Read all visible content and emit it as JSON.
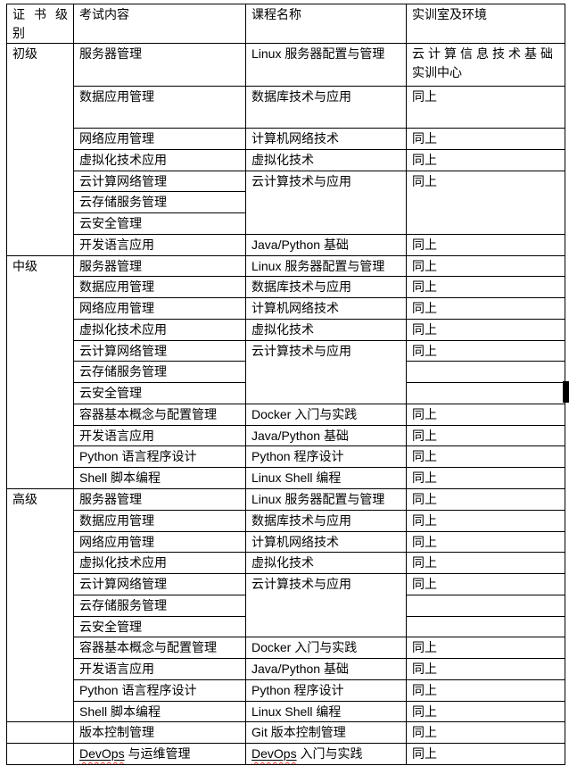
{
  "colors": {
    "background": "#ffffff",
    "border": "#000000",
    "text": "#000000",
    "squiggle": "#e03020",
    "edge_mark": "#000000"
  },
  "table": {
    "columns": [
      "证 书 级 别",
      "考试内容",
      "课程名称",
      "实训室及环境"
    ],
    "rows": [
      {
        "cls": "r-tall1",
        "cells": [
          {
            "t": "初级",
            "rs": 8,
            "name": "level-cell"
          },
          {
            "t": "服务器管理"
          },
          {
            "t": "Linux 服务器配置与管理"
          },
          {
            "t": "云计算信息技术基础实训中心",
            "cls": "env-wrap"
          }
        ]
      },
      {
        "cls": "r-tall2",
        "cells": [
          {
            "t": "数据应用管理"
          },
          {
            "t": "数据库技术与应用"
          },
          {
            "t": "同上"
          }
        ]
      },
      {
        "cells": [
          {
            "t": "网络应用管理"
          },
          {
            "t": "计算机网络技术"
          },
          {
            "t": "同上"
          }
        ]
      },
      {
        "cells": [
          {
            "t": "虚拟化技术应用"
          },
          {
            "t": "虚拟化技术"
          },
          {
            "t": "同上"
          }
        ]
      },
      {
        "cells": [
          {
            "t": "云计算网络管理"
          },
          {
            "t": "云计算技术与应用",
            "rs": 3
          },
          {
            "t": "同上",
            "rs": 3
          }
        ]
      },
      {
        "cells": [
          {
            "t": "云存储服务管理"
          }
        ]
      },
      {
        "cells": [
          {
            "t": "云安全管理"
          }
        ]
      },
      {
        "cells": [
          {
            "t": "开发语言应用"
          },
          {
            "t": "Java/Python 基础"
          },
          {
            "t": "同上"
          }
        ]
      },
      {
        "cells": [
          {
            "t": "中级",
            "rs": 11,
            "name": "level-cell"
          },
          {
            "t": "服务器管理"
          },
          {
            "t": "Linux 服务器配置与管理"
          },
          {
            "t": "同上"
          }
        ]
      },
      {
        "cells": [
          {
            "t": "数据应用管理"
          },
          {
            "t": "数据库技术与应用"
          },
          {
            "t": "同上"
          }
        ]
      },
      {
        "cells": [
          {
            "t": "网络应用管理"
          },
          {
            "t": "计算机网络技术"
          },
          {
            "t": "同上"
          }
        ]
      },
      {
        "cells": [
          {
            "t": "虚拟化技术应用"
          },
          {
            "t": "虚拟化技术"
          },
          {
            "t": "同上"
          }
        ]
      },
      {
        "cells": [
          {
            "t": "云计算网络管理"
          },
          {
            "t": "云计算技术与应用",
            "rs": 3
          },
          {
            "t": "同上"
          }
        ]
      },
      {
        "cells": [
          {
            "t": "云存储服务管理"
          },
          {
            "t": ""
          }
        ]
      },
      {
        "cells": [
          {
            "t": "云安全管理"
          },
          {
            "t": ""
          }
        ]
      },
      {
        "cells": [
          {
            "t": "容器基本概念与配置管理"
          },
          {
            "t": "Docker 入门与实践"
          },
          {
            "t": "同上"
          }
        ]
      },
      {
        "cells": [
          {
            "t": "开发语言应用"
          },
          {
            "t": "Java/Python 基础"
          },
          {
            "t": "同上"
          }
        ]
      },
      {
        "cells": [
          {
            "t": "Python 语言程序设计"
          },
          {
            "t": "Python 程序设计"
          },
          {
            "t": "同上"
          }
        ]
      },
      {
        "cells": [
          {
            "t": "Shell 脚本编程"
          },
          {
            "t": "Linux Shell 编程"
          },
          {
            "t": "同上"
          }
        ]
      },
      {
        "cells": [
          {
            "t": "高级",
            "rs": 11,
            "name": "level-cell"
          },
          {
            "t": "服务器管理"
          },
          {
            "t": "Linux 服务器配置与管理"
          },
          {
            "t": "同上"
          }
        ]
      },
      {
        "cells": [
          {
            "t": "数据应用管理"
          },
          {
            "t": "数据库技术与应用"
          },
          {
            "t": "同上"
          }
        ]
      },
      {
        "cells": [
          {
            "t": "网络应用管理"
          },
          {
            "t": "计算机网络技术"
          },
          {
            "t": "同上"
          }
        ]
      },
      {
        "cells": [
          {
            "t": "虚拟化技术应用"
          },
          {
            "t": "虚拟化技术"
          },
          {
            "t": "同上"
          }
        ]
      },
      {
        "cells": [
          {
            "t": "云计算网络管理"
          },
          {
            "t": "云计算技术与应用",
            "rs": 3
          },
          {
            "t": "同上"
          }
        ]
      },
      {
        "cells": [
          {
            "t": "云存储服务管理"
          },
          {
            "t": ""
          }
        ]
      },
      {
        "cells": [
          {
            "t": "云安全管理"
          },
          {
            "t": ""
          }
        ]
      },
      {
        "cells": [
          {
            "t": "容器基本概念与配置管理"
          },
          {
            "t": "Docker 入门与实践"
          },
          {
            "t": "同上"
          }
        ]
      },
      {
        "cells": [
          {
            "t": "开发语言应用"
          },
          {
            "t": "Java/Python 基础"
          },
          {
            "t": "同上"
          }
        ]
      },
      {
        "cells": [
          {
            "t": "Python 语言程序设计"
          },
          {
            "t": "Python 程序设计"
          },
          {
            "t": "同上"
          }
        ]
      },
      {
        "cells": [
          {
            "t": "Shell 脚本编程"
          },
          {
            "t": "Linux Shell 编程"
          },
          {
            "t": "同上"
          }
        ]
      },
      {
        "cells": [
          {
            "t": "",
            "name": "level-cell"
          },
          {
            "t": "版本控制管理"
          },
          {
            "t": "Git 版本控制管理"
          },
          {
            "t": "同上"
          }
        ]
      },
      {
        "cells": [
          {
            "t": "",
            "name": "level-cell"
          },
          {
            "sq": "DevOps",
            "t": " 与运维管理"
          },
          {
            "sq": "DevOps",
            "t": " 入门与实践"
          },
          {
            "t": "同上"
          }
        ]
      }
    ]
  }
}
